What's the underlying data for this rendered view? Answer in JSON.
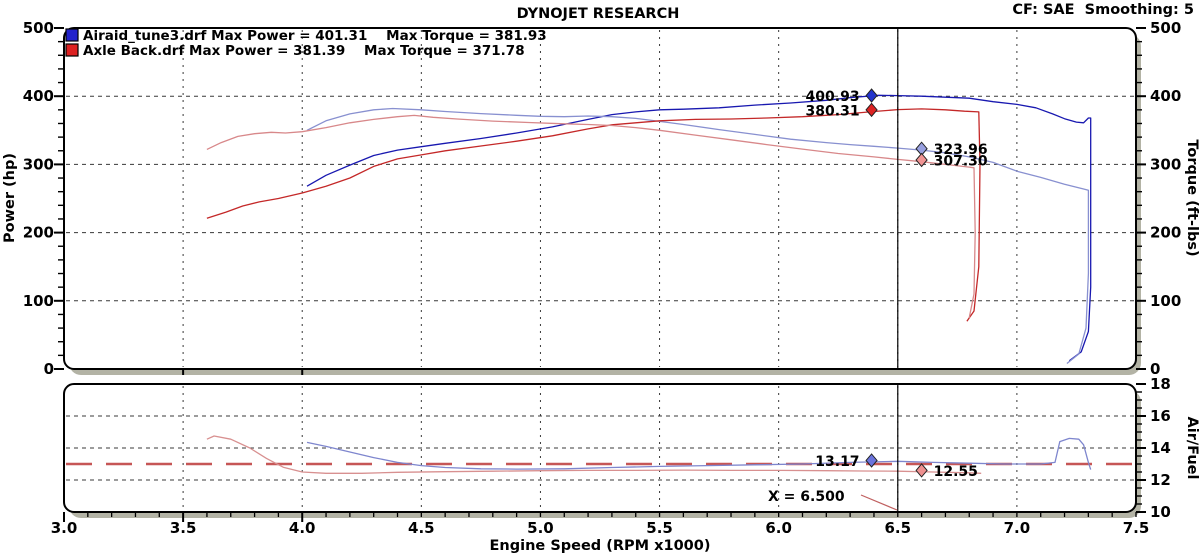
{
  "header": {
    "title": "DYNOJET RESEARCH",
    "cf_label": "CF: SAE  Smoothing: 5"
  },
  "legend": {
    "rows": [
      {
        "text": "Airaid_tune3.drf Max Power = 401.31    Max Torque = 381.93",
        "file": "Airaid_tune3.drf",
        "max_power": "401.31",
        "max_torque": "381.93",
        "swatch_color": "#2222cc"
      },
      {
        "text": "Axle Back.drf Max Power = 381.39    Max Torque = 371.78",
        "file": "Axle Back.drf",
        "max_power": "381.39",
        "max_torque": "371.78",
        "swatch_color": "#dd2222"
      }
    ]
  },
  "cursor": {
    "rpm": 6.5,
    "label": "X = 6.500"
  },
  "readouts": [
    {
      "id": "airaid-power",
      "value": "400.93",
      "rpm": 6.39,
      "v": 401.0,
      "panel": "main",
      "side": "left",
      "color": "#2233cc"
    },
    {
      "id": "axle-power",
      "value": "380.31",
      "rpm": 6.39,
      "v": 380.0,
      "panel": "main",
      "side": "left",
      "color": "#dd2222"
    },
    {
      "id": "airaid-torque",
      "value": "323.96",
      "rpm": 6.6,
      "v": 323.0,
      "panel": "main",
      "side": "right",
      "color": "#98a0e0"
    },
    {
      "id": "axle-torque",
      "value": "307.30",
      "rpm": 6.6,
      "v": 306.5,
      "panel": "main",
      "side": "right",
      "color": "#f09494"
    },
    {
      "id": "airaid-afr",
      "value": "13.17",
      "rpm": 6.39,
      "v": 13.22,
      "panel": "afr",
      "side": "left",
      "color": "#6b74dd"
    },
    {
      "id": "axle-afr",
      "value": "12.55",
      "rpm": 6.6,
      "v": 12.6,
      "panel": "afr",
      "side": "right",
      "color": "#ee9090"
    }
  ],
  "axes": {
    "x": {
      "title": "Engine Speed (RPM x1000)",
      "min": 3.0,
      "max": 7.5,
      "minor_step": 0.1,
      "tick_values": [
        3.0,
        3.5,
        4.0,
        4.5,
        5.0,
        5.5,
        6.0,
        6.5,
        7.0,
        7.5
      ],
      "tick_labels": [
        "3.0",
        "3.5",
        "4.0",
        "4.5",
        "5.0",
        "5.5",
        "6.0",
        "6.5",
        "7.0",
        "7.5"
      ]
    },
    "power": {
      "title": "Power (hp)",
      "min": 0,
      "max": 500,
      "minor_step": 20,
      "tick_values": [
        0,
        100,
        200,
        300,
        400,
        500
      ],
      "tick_labels": [
        "0",
        "100",
        "200",
        "300",
        "400",
        "500"
      ]
    },
    "torque": {
      "title": "Torque (ft-lbs)",
      "min": 0,
      "max": 500,
      "minor_step": 20,
      "tick_values": [
        0,
        100,
        200,
        300,
        400,
        500
      ],
      "tick_labels": [
        "0",
        "100",
        "200",
        "300",
        "400",
        "500"
      ]
    },
    "afr": {
      "title": "Air/Fuel",
      "min": 10,
      "max": 18,
      "minor_step": 0.5,
      "tick_values": [
        10,
        12,
        14,
        16,
        18
      ],
      "tick_labels": [
        "10",
        "12",
        "14",
        "16",
        "18"
      ]
    }
  },
  "grid": {
    "vertical_rpm": [
      3.5,
      4.0,
      4.5,
      5.0,
      5.5,
      6.0,
      6.5,
      7.0
    ],
    "main_horizontal": [
      100,
      200,
      300,
      400
    ],
    "afr_horizontal": [
      12,
      14,
      16
    ]
  },
  "chart_data": {
    "type": "line",
    "title": "DYNOJET RESEARCH",
    "xlabel": "Engine Speed (RPM x1000)",
    "x_range": [
      3.0,
      7.5
    ],
    "panels": {
      "main": {
        "ylabel_left": "Power (hp)",
        "ylabel_right": "Torque (ft-lbs)",
        "ylim": [
          0,
          500
        ]
      },
      "afr": {
        "ylabel_right": "Air/Fuel",
        "ylim": [
          10,
          18
        ]
      }
    },
    "target_line": {
      "panel": "afr",
      "value": 13.0,
      "color": "#c65656",
      "style": "dashed"
    },
    "series": [
      {
        "name": "Airaid_tune3.drf Power (hp)",
        "panel": "main",
        "color": "#1818b0",
        "points": [
          [
            4.02,
            268
          ],
          [
            4.1,
            284
          ],
          [
            4.2,
            299
          ],
          [
            4.3,
            313
          ],
          [
            4.4,
            321
          ],
          [
            4.5,
            326
          ],
          [
            4.6,
            331
          ],
          [
            4.75,
            338
          ],
          [
            4.9,
            346
          ],
          [
            5.05,
            355
          ],
          [
            5.2,
            366
          ],
          [
            5.3,
            373
          ],
          [
            5.4,
            377
          ],
          [
            5.5,
            380
          ],
          [
            5.6,
            381
          ],
          [
            5.75,
            383
          ],
          [
            5.9,
            387
          ],
          [
            6.05,
            390
          ],
          [
            6.2,
            394
          ],
          [
            6.3,
            398
          ],
          [
            6.42,
            401.3
          ],
          [
            6.5,
            400.9
          ],
          [
            6.6,
            400
          ],
          [
            6.7,
            398.5
          ],
          [
            6.8,
            397
          ],
          [
            6.9,
            392
          ],
          [
            7.0,
            388
          ],
          [
            7.08,
            383
          ],
          [
            7.15,
            374
          ],
          [
            7.2,
            367
          ],
          [
            7.25,
            362
          ],
          [
            7.28,
            361
          ],
          [
            7.3,
            368
          ],
          [
            7.31,
            368
          ],
          [
            7.31,
            120
          ],
          [
            7.3,
            55
          ],
          [
            7.27,
            25
          ],
          [
            7.22,
            12
          ]
        ]
      },
      {
        "name": "Airaid_tune3.drf Torque (ft-lbs)",
        "panel": "main",
        "color": "#8890d0",
        "points": [
          [
            4.02,
            350
          ],
          [
            4.1,
            364
          ],
          [
            4.2,
            374
          ],
          [
            4.3,
            380
          ],
          [
            4.38,
            381.9
          ],
          [
            4.5,
            380
          ],
          [
            4.6,
            377.5
          ],
          [
            4.75,
            374.5
          ],
          [
            4.9,
            372
          ],
          [
            5.0,
            370.5
          ],
          [
            5.1,
            370
          ],
          [
            5.2,
            371
          ],
          [
            5.3,
            370
          ],
          [
            5.4,
            367.5
          ],
          [
            5.5,
            363
          ],
          [
            5.6,
            358.5
          ],
          [
            5.75,
            351
          ],
          [
            5.9,
            344
          ],
          [
            6.05,
            337
          ],
          [
            6.2,
            332
          ],
          [
            6.3,
            329
          ],
          [
            6.4,
            326.5
          ],
          [
            6.5,
            323.96
          ],
          [
            6.6,
            321
          ],
          [
            6.7,
            317
          ],
          [
            6.8,
            311
          ],
          [
            6.9,
            303
          ],
          [
            7.0,
            290
          ],
          [
            7.1,
            281
          ],
          [
            7.2,
            271
          ],
          [
            7.28,
            264
          ],
          [
            7.3,
            262
          ],
          [
            7.3,
            140
          ],
          [
            7.29,
            60
          ],
          [
            7.26,
            22
          ],
          [
            7.21,
            8
          ]
        ]
      },
      {
        "name": "Axle Back.drf Power (hp)",
        "panel": "main",
        "color": "#c42828",
        "points": [
          [
            3.6,
            221
          ],
          [
            3.68,
            230
          ],
          [
            3.75,
            239
          ],
          [
            3.82,
            245
          ],
          [
            3.9,
            250
          ],
          [
            4.0,
            258
          ],
          [
            4.1,
            268
          ],
          [
            4.2,
            280
          ],
          [
            4.3,
            297
          ],
          [
            4.4,
            308
          ],
          [
            4.5,
            314
          ],
          [
            4.6,
            320
          ],
          [
            4.75,
            327
          ],
          [
            4.9,
            334
          ],
          [
            5.05,
            342
          ],
          [
            5.2,
            352
          ],
          [
            5.3,
            358
          ],
          [
            5.4,
            361
          ],
          [
            5.5,
            364
          ],
          [
            5.65,
            366
          ],
          [
            5.8,
            366.5
          ],
          [
            5.95,
            368
          ],
          [
            6.1,
            370
          ],
          [
            6.25,
            373
          ],
          [
            6.4,
            377.5
          ],
          [
            6.5,
            380.3
          ],
          [
            6.6,
            381.4
          ],
          [
            6.7,
            380
          ],
          [
            6.78,
            378
          ],
          [
            6.84,
            377
          ],
          [
            6.845,
            300
          ],
          [
            6.84,
            150
          ],
          [
            6.82,
            85
          ],
          [
            6.79,
            70
          ]
        ]
      },
      {
        "name": "Axle Back.drf Torque (ft-lbs)",
        "panel": "main",
        "color": "#d8888a",
        "points": [
          [
            3.6,
            322
          ],
          [
            3.66,
            332
          ],
          [
            3.73,
            341
          ],
          [
            3.8,
            345
          ],
          [
            3.87,
            347
          ],
          [
            3.93,
            346
          ],
          [
            4.0,
            348
          ],
          [
            4.1,
            354
          ],
          [
            4.2,
            361
          ],
          [
            4.3,
            366
          ],
          [
            4.4,
            370
          ],
          [
            4.47,
            371.8
          ],
          [
            4.55,
            369
          ],
          [
            4.65,
            366.5
          ],
          [
            4.8,
            363.5
          ],
          [
            4.95,
            361.5
          ],
          [
            5.1,
            359.5
          ],
          [
            5.2,
            358.5
          ],
          [
            5.3,
            357
          ],
          [
            5.4,
            354
          ],
          [
            5.5,
            350
          ],
          [
            5.65,
            343
          ],
          [
            5.8,
            336
          ],
          [
            5.95,
            329
          ],
          [
            6.1,
            322.5
          ],
          [
            6.25,
            316
          ],
          [
            6.4,
            311
          ],
          [
            6.5,
            307.3
          ],
          [
            6.6,
            304
          ],
          [
            6.7,
            300
          ],
          [
            6.8,
            296
          ],
          [
            6.82,
            295
          ],
          [
            6.825,
            200
          ],
          [
            6.82,
            110
          ],
          [
            6.8,
            75
          ]
        ]
      },
      {
        "name": "Airaid_tune3.drf Air/Fuel",
        "panel": "afr",
        "color": "#7e86ce",
        "points": [
          [
            4.02,
            14.35
          ],
          [
            4.1,
            14.1
          ],
          [
            4.2,
            13.75
          ],
          [
            4.3,
            13.4
          ],
          [
            4.4,
            13.1
          ],
          [
            4.5,
            12.9
          ],
          [
            4.6,
            12.78
          ],
          [
            4.75,
            12.7
          ],
          [
            4.9,
            12.68
          ],
          [
            5.1,
            12.7
          ],
          [
            5.3,
            12.78
          ],
          [
            5.5,
            12.85
          ],
          [
            5.7,
            12.9
          ],
          [
            5.9,
            12.95
          ],
          [
            6.1,
            13.0
          ],
          [
            6.3,
            13.1
          ],
          [
            6.5,
            13.17
          ],
          [
            6.65,
            13.1
          ],
          [
            6.8,
            13.05
          ],
          [
            6.95,
            13.0
          ],
          [
            7.1,
            13.0
          ],
          [
            7.16,
            13.1
          ],
          [
            7.18,
            14.4
          ],
          [
            7.22,
            14.6
          ],
          [
            7.26,
            14.55
          ],
          [
            7.28,
            14.2
          ],
          [
            7.3,
            13.1
          ],
          [
            7.31,
            12.65
          ]
        ]
      },
      {
        "name": "Axle Back.drf Air/Fuel",
        "panel": "afr",
        "color": "#d89090",
        "points": [
          [
            3.6,
            14.55
          ],
          [
            3.63,
            14.75
          ],
          [
            3.7,
            14.55
          ],
          [
            3.78,
            14.0
          ],
          [
            3.85,
            13.35
          ],
          [
            3.92,
            12.8
          ],
          [
            4.0,
            12.5
          ],
          [
            4.1,
            12.42
          ],
          [
            4.25,
            12.42
          ],
          [
            4.4,
            12.48
          ],
          [
            4.6,
            12.52
          ],
          [
            4.8,
            12.55
          ],
          [
            5.0,
            12.58
          ],
          [
            5.2,
            12.6
          ],
          [
            5.4,
            12.6
          ],
          [
            5.6,
            12.62
          ],
          [
            5.8,
            12.6
          ],
          [
            6.0,
            12.6
          ],
          [
            6.2,
            12.58
          ],
          [
            6.35,
            12.56
          ],
          [
            6.5,
            12.55
          ],
          [
            6.65,
            12.5
          ],
          [
            6.8,
            12.45
          ],
          [
            6.85,
            12.42
          ]
        ]
      }
    ]
  },
  "colors": {
    "shadow": "#b3b3a5",
    "grid": "#383838",
    "frame": "#000000",
    "cursor": "#000000",
    "leader": "#c06060"
  }
}
